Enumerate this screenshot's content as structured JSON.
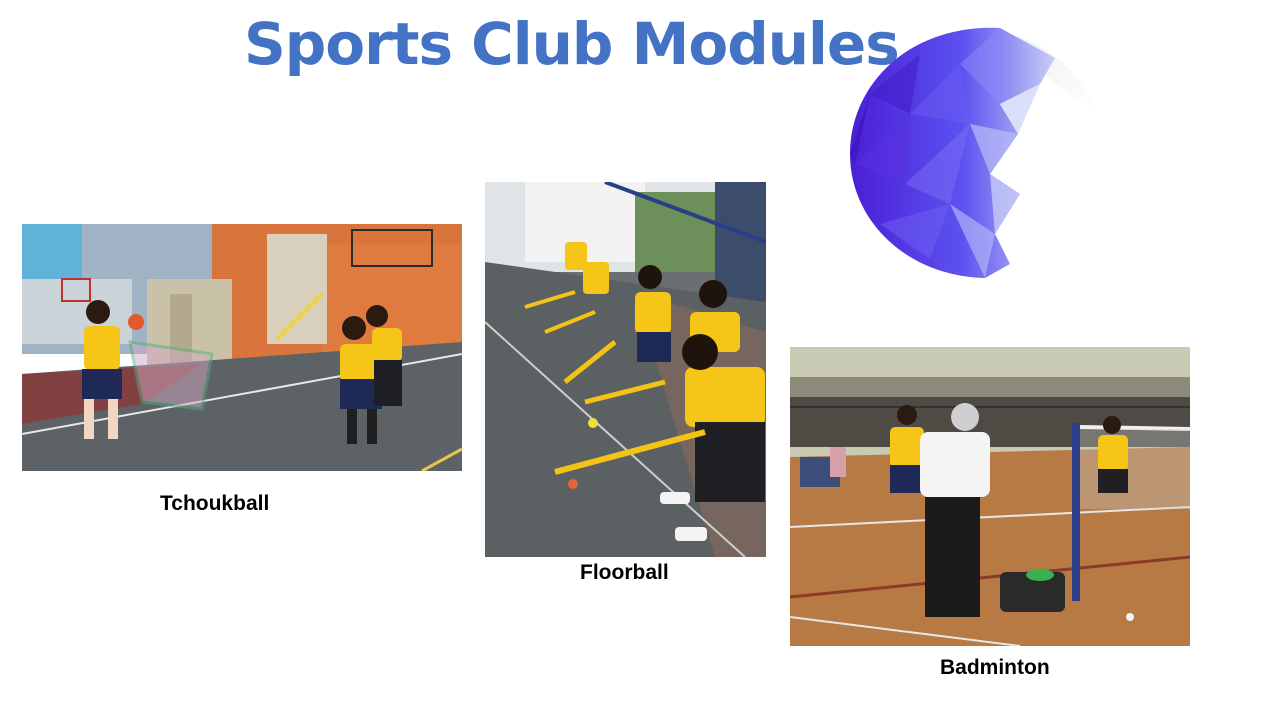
{
  "slide": {
    "title": "Sports Club Modules"
  },
  "modules": [
    {
      "label": "Tchoukball"
    },
    {
      "label": "Floorball"
    },
    {
      "label": "Badminton"
    }
  ],
  "colors": {
    "title": "#4472C4",
    "logo_dark": "#4B2BD9",
    "logo_light": "#B9C2F5",
    "uniform_yellow": "#F5C518",
    "floor_wood": "#B77A45"
  },
  "icons": {
    "logo": "faceted-crescent-logo"
  }
}
